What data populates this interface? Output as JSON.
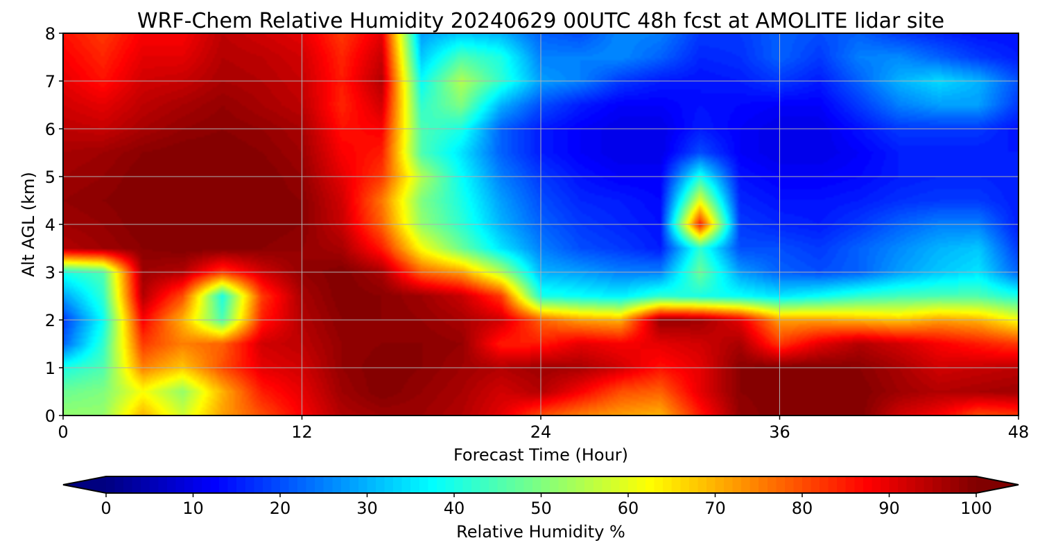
{
  "chart_data": {
    "type": "heatmap",
    "title": "WRF-Chem Relative Humidity 20240629 00UTC 48h fcst at AMOLITE lidar site",
    "xlabel": "Forecast Time (Hour)",
    "ylabel": "Alt AGL (km)",
    "xlim": [
      0,
      48
    ],
    "ylim": [
      0,
      8
    ],
    "xticks": [
      0,
      12,
      24,
      36,
      48
    ],
    "yticks": [
      0,
      1,
      2,
      3,
      4,
      5,
      6,
      7,
      8
    ],
    "grid": true,
    "colormap": "jet",
    "colorbar": {
      "label": "Relative Humidity %",
      "ticks": [
        0,
        10,
        20,
        30,
        40,
        50,
        60,
        70,
        80,
        90,
        100
      ],
      "range": [
        0,
        100
      ],
      "extend": "both",
      "orientation": "horizontal",
      "position": "bottom"
    },
    "x_hours": [
      0,
      2,
      4,
      6,
      8,
      10,
      12,
      14,
      16,
      18,
      20,
      22,
      24,
      26,
      28,
      30,
      32,
      34,
      36,
      38,
      40,
      42,
      44,
      46,
      48
    ],
    "y_km": [
      0,
      0.5,
      1,
      1.5,
      2,
      2.5,
      3,
      3.5,
      4,
      4.5,
      5,
      5.5,
      6,
      6.5,
      7,
      7.5,
      8
    ],
    "values": [
      [
        52,
        52,
        70,
        58,
        72,
        80,
        88,
        95,
        97,
        97,
        95,
        90,
        80,
        75,
        72,
        70,
        85,
        98,
        100,
        100,
        100,
        92,
        88,
        80,
        82
      ],
      [
        48,
        50,
        62,
        52,
        70,
        85,
        90,
        97,
        100,
        98,
        96,
        92,
        95,
        88,
        80,
        78,
        90,
        99,
        100,
        100,
        100,
        97,
        95,
        96,
        97
      ],
      [
        40,
        45,
        75,
        68,
        80,
        90,
        92,
        98,
        100,
        99,
        97,
        95,
        97,
        96,
        92,
        86,
        90,
        99,
        100,
        100,
        99,
        96,
        92,
        93,
        94
      ],
      [
        22,
        42,
        82,
        75,
        78,
        92,
        94,
        98,
        99,
        99,
        98,
        85,
        85,
        90,
        88,
        90,
        92,
        96,
        82,
        90,
        95,
        92,
        88,
        85,
        82
      ],
      [
        18,
        38,
        88,
        70,
        45,
        85,
        95,
        99,
        99,
        98,
        96,
        92,
        78,
        72,
        70,
        98,
        97,
        90,
        72,
        72,
        70,
        68,
        72,
        70,
        62
      ],
      [
        28,
        42,
        95,
        80,
        40,
        82,
        96,
        100,
        99,
        97,
        93,
        82,
        40,
        38,
        36,
        42,
        40,
        38,
        35,
        38,
        42,
        44,
        45,
        45,
        40
      ],
      [
        40,
        45,
        97,
        95,
        82,
        92,
        98,
        100,
        96,
        78,
        72,
        55,
        30,
        28,
        25,
        25,
        48,
        28,
        22,
        20,
        22,
        28,
        32,
        35,
        22
      ],
      [
        95,
        97,
        99,
        100,
        100,
        99,
        98,
        96,
        85,
        62,
        48,
        35,
        25,
        20,
        18,
        15,
        42,
        20,
        20,
        18,
        22,
        26,
        30,
        32,
        18
      ],
      [
        97,
        98,
        100,
        100,
        100,
        100,
        99,
        93,
        78,
        52,
        42,
        30,
        22,
        18,
        16,
        14,
        85,
        18,
        16,
        15,
        18,
        22,
        25,
        25,
        15
      ],
      [
        98,
        99,
        100,
        100,
        100,
        100,
        99,
        92,
        76,
        50,
        40,
        28,
        20,
        16,
        15,
        13,
        60,
        16,
        14,
        14,
        15,
        17,
        18,
        18,
        15
      ],
      [
        97,
        98,
        100,
        100,
        100,
        100,
        98,
        90,
        82,
        55,
        38,
        25,
        18,
        14,
        12,
        12,
        40,
        14,
        12,
        12,
        13,
        15,
        16,
        16,
        15
      ],
      [
        96,
        97,
        99,
        100,
        100,
        99,
        97,
        88,
        85,
        45,
        35,
        22,
        15,
        12,
        10,
        10,
        20,
        12,
        10,
        10,
        12,
        15,
        15,
        15,
        15
      ],
      [
        94,
        93,
        96,
        98,
        99,
        98,
        96,
        86,
        88,
        45,
        40,
        22,
        15,
        12,
        10,
        10,
        15,
        12,
        10,
        10,
        14,
        18,
        18,
        18,
        14
      ],
      [
        92,
        90,
        94,
        96,
        98,
        96,
        94,
        84,
        92,
        42,
        50,
        30,
        20,
        15,
        12,
        12,
        14,
        13,
        12,
        12,
        18,
        25,
        28,
        28,
        18
      ],
      [
        90,
        86,
        92,
        93,
        96,
        95,
        93,
        85,
        95,
        38,
        55,
        42,
        28,
        25,
        18,
        15,
        14,
        15,
        18,
        15,
        22,
        30,
        34,
        30,
        20
      ],
      [
        88,
        84,
        90,
        90,
        95,
        94,
        92,
        84,
        93,
        32,
        45,
        40,
        25,
        25,
        26,
        22,
        16,
        17,
        22,
        18,
        25,
        26,
        22,
        18,
        15
      ],
      [
        86,
        82,
        88,
        88,
        94,
        92,
        90,
        82,
        90,
        28,
        32,
        30,
        22,
        20,
        26,
        25,
        18,
        18,
        22,
        20,
        22,
        18,
        16,
        14,
        14
      ]
    ]
  }
}
